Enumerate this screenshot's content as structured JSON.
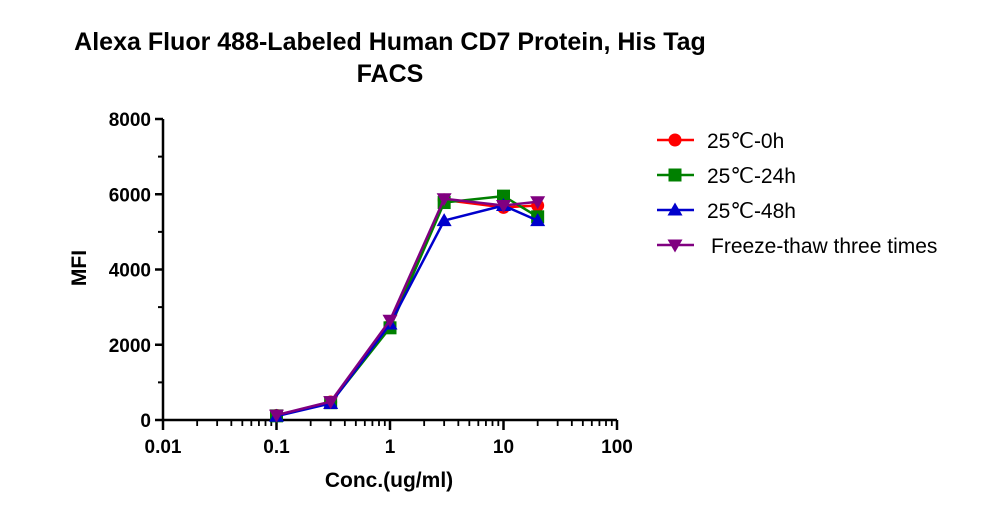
{
  "chart_data": {
    "type": "line",
    "title": "Alexa Fluor 488-Labeled Human CD7 Protein, His Tag",
    "subtitle": "FACS",
    "xlabel": "Conc.(ug/ml)",
    "ylabel": "MFI",
    "xscale": "log",
    "xlim": [
      0.01,
      100
    ],
    "ylim": [
      0,
      8000
    ],
    "xticks": [
      "0.01",
      "0.1",
      "1",
      "10",
      "100"
    ],
    "yticks": [
      "0",
      "2000",
      "4000",
      "6000",
      "8000"
    ],
    "grid": false,
    "legend_position": "right",
    "series": [
      {
        "name": "25℃-0h",
        "color": "#ff0000",
        "marker": "circle",
        "x": [
          0.1,
          0.3,
          1,
          3,
          10,
          20
        ],
        "y": [
          120,
          480,
          2500,
          5850,
          5650,
          5700
        ]
      },
      {
        "name": "25℃-24h",
        "color": "#008000",
        "marker": "square",
        "x": [
          0.1,
          0.3,
          1,
          3,
          10,
          20
        ],
        "y": [
          110,
          460,
          2450,
          5780,
          5950,
          5400
        ]
      },
      {
        "name": "25℃-48h",
        "color": "#0000cc",
        "marker": "triangle-up",
        "x": [
          0.1,
          0.3,
          1,
          3,
          10,
          20
        ],
        "y": [
          100,
          440,
          2550,
          5300,
          5700,
          5300
        ]
      },
      {
        "name": "Freeze-thaw three times",
        "color": "#800080",
        "marker": "triangle-down",
        "x": [
          0.1,
          0.3,
          1,
          3,
          10,
          20
        ],
        "y": [
          130,
          490,
          2650,
          5880,
          5700,
          5800
        ]
      }
    ]
  }
}
